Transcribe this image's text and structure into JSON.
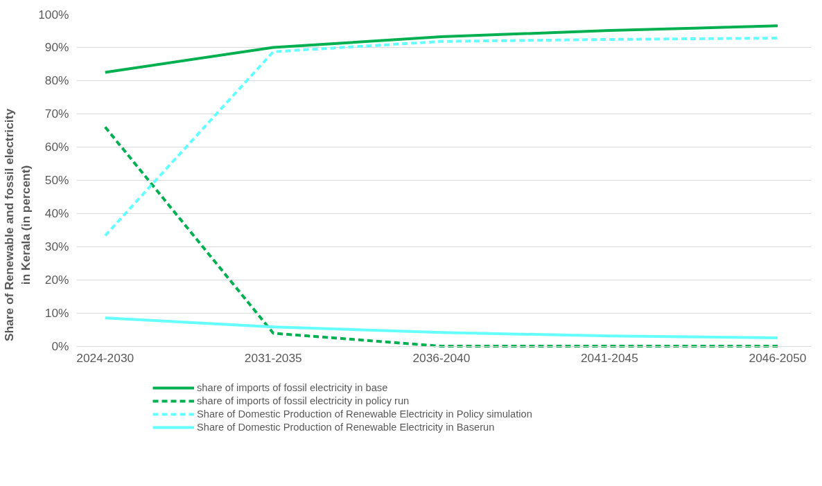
{
  "chart_data": {
    "type": "line",
    "ylabel": "Share of Renewable and fossil electricity in Kerala (in percent)",
    "categories": [
      "2024-2030",
      "2031-2035",
      "2036-2040",
      "2041-2045",
      "2046-2050"
    ],
    "ylim": [
      0,
      100
    ],
    "yticks": [
      {
        "value": 0,
        "label": "0%"
      },
      {
        "value": 10,
        "label": "10%"
      },
      {
        "value": 20,
        "label": "20%"
      },
      {
        "value": 30,
        "label": "30%"
      },
      {
        "value": 40,
        "label": "40%"
      },
      {
        "value": 50,
        "label": "50%"
      },
      {
        "value": 60,
        "label": "60%"
      },
      {
        "value": 70,
        "label": "70%"
      },
      {
        "value": 80,
        "label": "80%"
      },
      {
        "value": 90,
        "label": "90%"
      },
      {
        "value": 100,
        "label": "100%"
      }
    ],
    "grid": "y",
    "legend": "bottom",
    "marker": "none",
    "series": [
      {
        "name": "share of imports of fossil electricity in base",
        "color": "#00b050",
        "line_style": "solid",
        "values": [
          82.5,
          90,
          93.2,
          95.1,
          96.5
        ]
      },
      {
        "name": "share of imports of fossil electricity in policy run",
        "color": "#00b050",
        "line_style": "dashed",
        "values": [
          66,
          3.9,
          0,
          0,
          0
        ]
      },
      {
        "name": "Share of Domestic Production of Renewable Electricity in Policy simulation",
        "color": "#66ffff",
        "line_style": "dashed",
        "values": [
          33.3,
          88.7,
          91.8,
          92.4,
          92.8
        ]
      },
      {
        "name": "Share of Domestic Production of Renewable Electricity in Baserun",
        "color": "#66ffff",
        "line_style": "solid",
        "values": [
          8.5,
          5.8,
          4.1,
          3.1,
          2.5
        ]
      }
    ]
  }
}
